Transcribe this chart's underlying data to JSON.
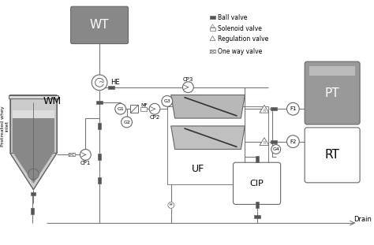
{
  "background_color": "#ffffff",
  "line_color": "#666666",
  "legend_items": [
    "Ball valve",
    "Solenoid valve",
    "Regulation valve",
    "One way valve"
  ],
  "labels": {
    "WT": "WT",
    "WM": "WM",
    "HE": "HE",
    "UF": "UF",
    "CIP": "CIP",
    "PT": "PT",
    "RT": "RT",
    "CP1": "CP1",
    "CP2": "CP2",
    "CP3": "CP3",
    "MF": "MF",
    "G1": "G1",
    "G2": "G2",
    "G3": "G3",
    "G4": "G4",
    "F1": "F1",
    "F2": "F2",
    "Drain": "Drain",
    "inlet": "Pretreated whey\ninlet"
  },
  "colors": {
    "wt_fill": "#888888",
    "wm_body": "#cccccc",
    "wm_liquid": "#888888",
    "wm_top": "#dddddd",
    "uf_upper": "#b8b8b8",
    "uf_lower": "#c8c8c8",
    "uf_diag": "#333333",
    "pt_fill": "#999999",
    "rt_fill": "#ffffff",
    "cip_fill": "#ffffff",
    "valve_dark": "#555555",
    "pipe": "#777777"
  }
}
